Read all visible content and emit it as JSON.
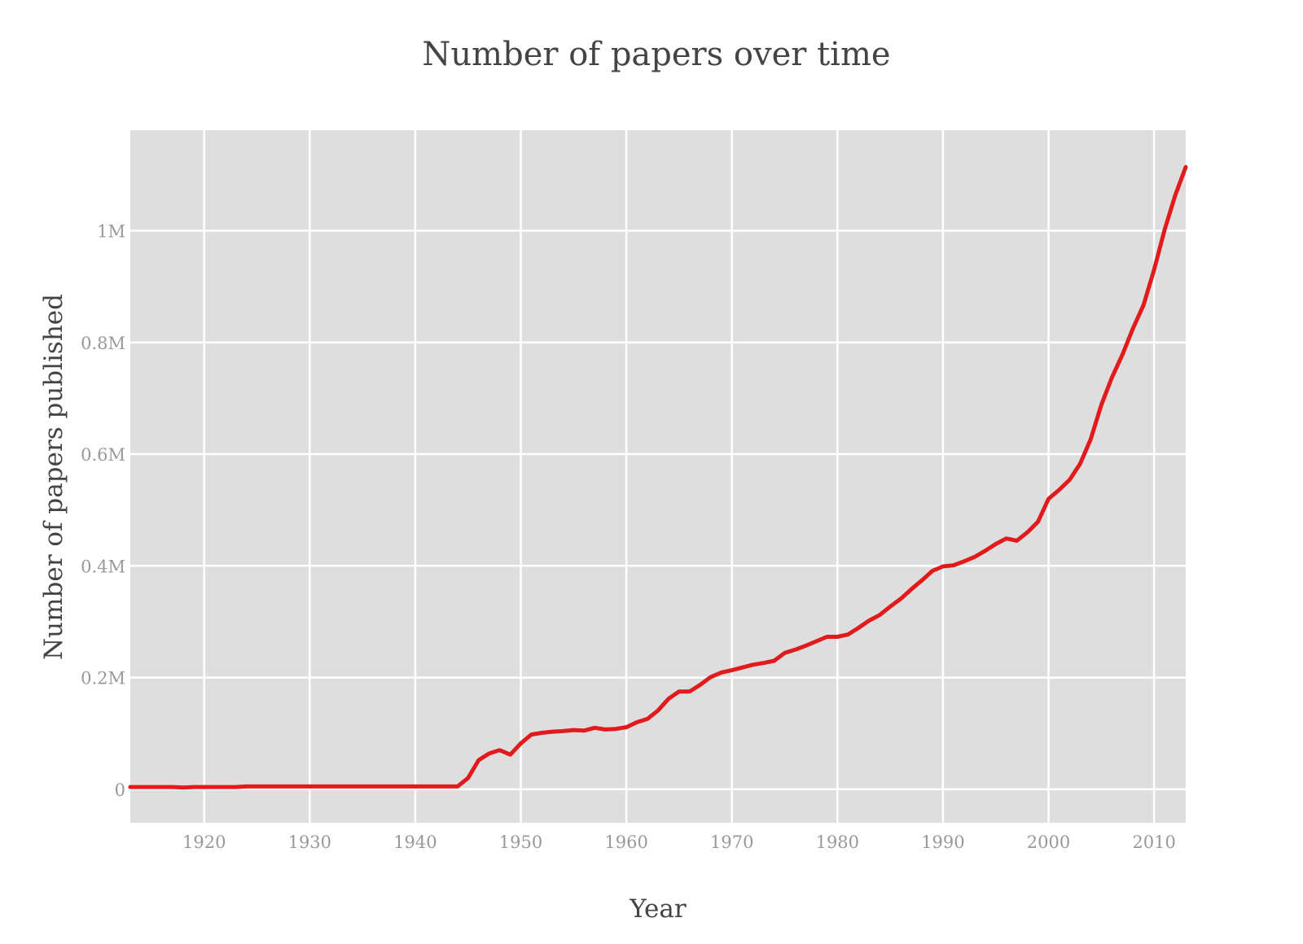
{
  "chart_data": {
    "type": "line",
    "title": "Number of papers over time",
    "xlabel": "Year",
    "ylabel": "Number of papers published",
    "xlim": [
      1913,
      2013
    ],
    "ylim": [
      -60000,
      1180000
    ],
    "xticks": [
      1920,
      1930,
      1940,
      1950,
      1960,
      1970,
      1980,
      1990,
      2000,
      2010
    ],
    "xtick_labels": [
      "1920",
      "1930",
      "1940",
      "1950",
      "1960",
      "1970",
      "1980",
      "1990",
      "2000",
      "2010"
    ],
    "yticks": [
      0,
      200000,
      400000,
      600000,
      800000,
      1000000
    ],
    "ytick_labels": [
      "0",
      "0.2M",
      "0.4M",
      "0.6M",
      "0.8M",
      "1M"
    ],
    "grid": true,
    "background": "#dedede",
    "series": [
      {
        "color": "#e31a1c",
        "x": [
          1913,
          1914,
          1915,
          1916,
          1917,
          1918,
          1919,
          1920,
          1921,
          1922,
          1923,
          1924,
          1925,
          1926,
          1927,
          1928,
          1929,
          1930,
          1931,
          1932,
          1933,
          1934,
          1935,
          1936,
          1937,
          1938,
          1939,
          1940,
          1941,
          1942,
          1943,
          1944,
          1945,
          1946,
          1947,
          1948,
          1949,
          1950,
          1951,
          1952,
          1953,
          1954,
          1955,
          1956,
          1957,
          1958,
          1959,
          1960,
          1961,
          1962,
          1963,
          1964,
          1965,
          1966,
          1967,
          1968,
          1969,
          1970,
          1971,
          1972,
          1973,
          1974,
          1975,
          1976,
          1977,
          1978,
          1979,
          1980,
          1981,
          1982,
          1983,
          1984,
          1985,
          1986,
          1987,
          1988,
          1989,
          1990,
          1991,
          1992,
          1993,
          1994,
          1995,
          1996,
          1997,
          1998,
          1999,
          2000,
          2001,
          2002,
          2003,
          2004,
          2005,
          2006,
          2007,
          2008,
          2009,
          2010,
          2011,
          2012,
          2013
        ],
        "y": [
          4000,
          4000,
          4000,
          4000,
          4000,
          3000,
          4000,
          4000,
          4000,
          4000,
          4000,
          5000,
          5000,
          5000,
          5000,
          5000,
          5000,
          5000,
          5000,
          5000,
          5000,
          5000,
          5000,
          5000,
          5000,
          5000,
          5000,
          5000,
          5000,
          5000,
          5000,
          5000,
          20000,
          52000,
          64000,
          70000,
          62000,
          82000,
          98000,
          101000,
          103000,
          104000,
          106000,
          105000,
          110000,
          107000,
          108000,
          111000,
          120000,
          126000,
          141000,
          162000,
          175000,
          175000,
          187000,
          201000,
          209000,
          213000,
          218000,
          223000,
          226000,
          230000,
          244000,
          250000,
          257000,
          265000,
          273000,
          273000,
          277000,
          289000,
          302000,
          312000,
          327000,
          341000,
          358000,
          374000,
          391000,
          399000,
          401000,
          408000,
          416000,
          427000,
          439000,
          449000,
          445000,
          460000,
          479000,
          520000,
          536000,
          554000,
          583000,
          627000,
          688000,
          737000,
          778000,
          825000,
          867000,
          930000,
          1002000,
          1063000,
          1114000
        ]
      }
    ]
  }
}
